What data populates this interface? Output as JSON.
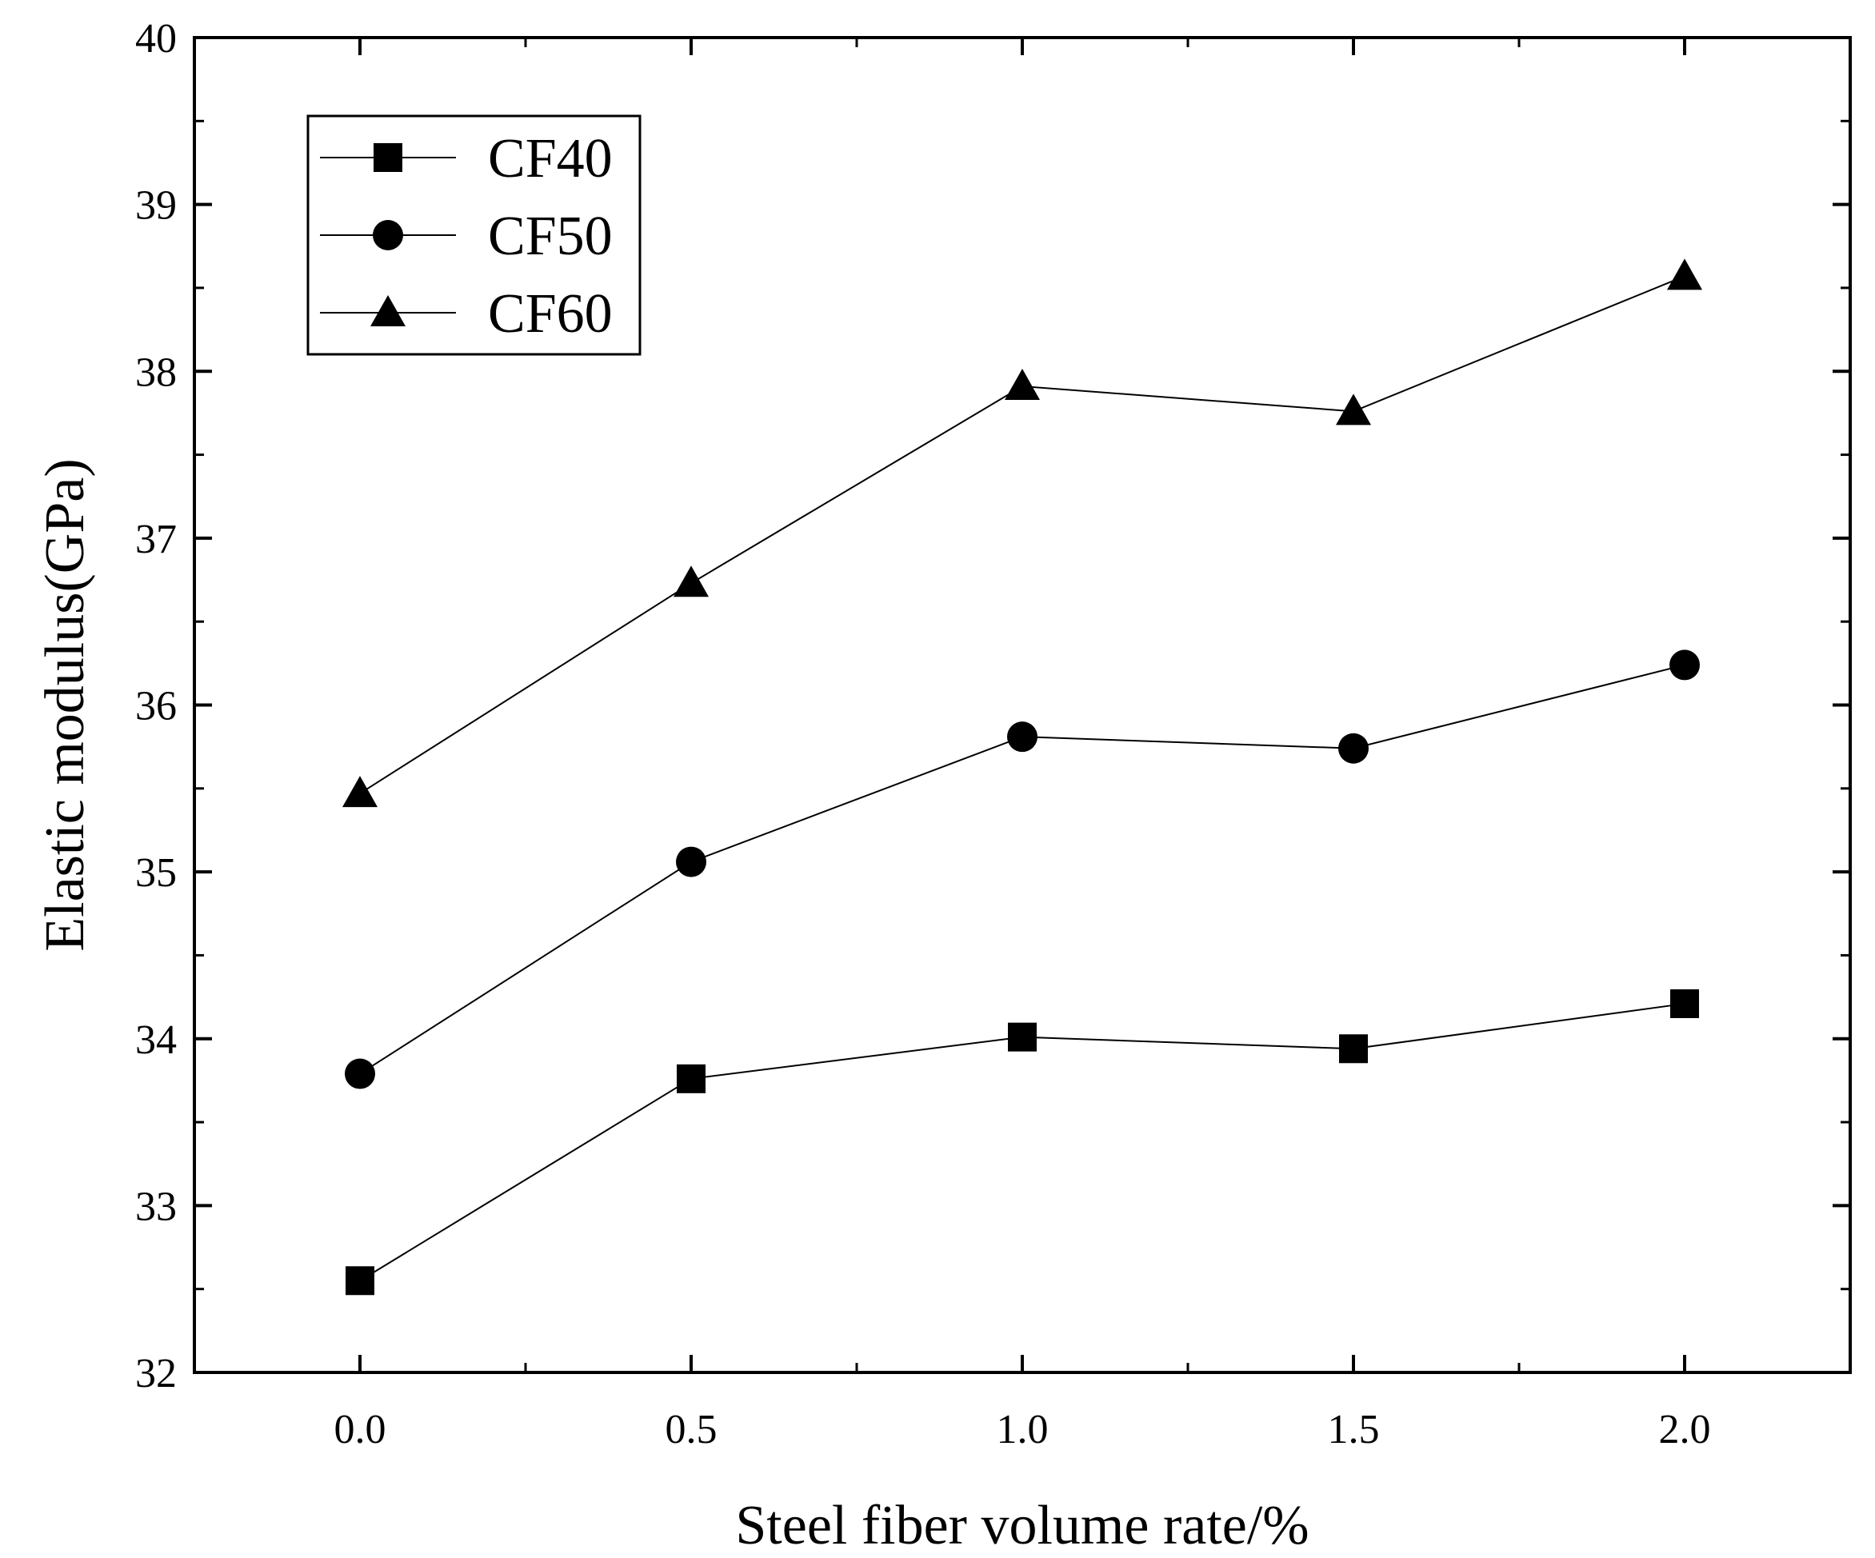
{
  "chart_data": {
    "type": "line",
    "title": "",
    "xlabel": "Steel fiber volume rate/%",
    "ylabel": "Elastic modulus(GPa)",
    "x": [
      0.0,
      0.5,
      1.0,
      1.5,
      2.0
    ],
    "x_tick_labels": [
      "0.0",
      "0.5",
      "1.0",
      "1.5",
      "2.0"
    ],
    "xlim": [
      -0.25,
      2.25
    ],
    "ylim": [
      32,
      40
    ],
    "y_ticks": [
      32,
      33,
      34,
      35,
      36,
      37,
      38,
      39,
      40
    ],
    "y_tick_labels": [
      "32",
      "33",
      "34",
      "35",
      "36",
      "37",
      "38",
      "39",
      "40"
    ],
    "grid": false,
    "legend_position": "top-left",
    "series": [
      {
        "name": "CF40",
        "marker": "square",
        "values": [
          32.55,
          33.76,
          34.01,
          33.94,
          34.21
        ]
      },
      {
        "name": "CF50",
        "marker": "circle",
        "values": [
          33.79,
          35.06,
          35.81,
          35.74,
          36.24
        ]
      },
      {
        "name": "CF60",
        "marker": "triangle",
        "values": [
          35.47,
          36.73,
          37.91,
          37.76,
          38.57
        ]
      }
    ],
    "colors": {
      "line": "#000000",
      "marker": "#000000",
      "axis": "#000000"
    }
  }
}
